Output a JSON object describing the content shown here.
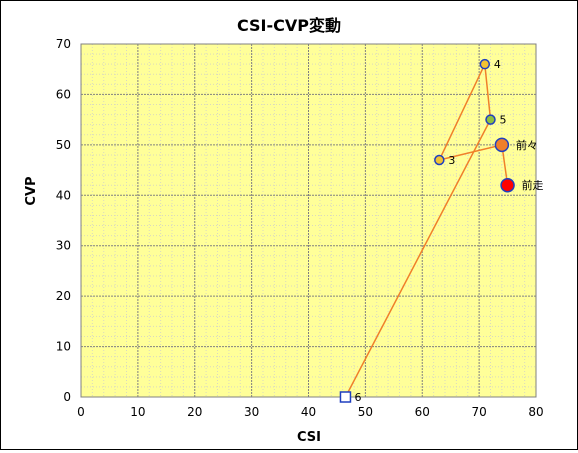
{
  "chart_data": {
    "type": "scatter",
    "title": "CSI-CVP変動",
    "xlabel": "CSI",
    "ylabel": "CVP",
    "xlim": [
      0,
      80
    ],
    "ylim": [
      0,
      70
    ],
    "x_ticks": [
      0,
      10,
      20,
      30,
      40,
      50,
      60,
      70,
      80
    ],
    "y_ticks": [
      0,
      10,
      20,
      30,
      40,
      50,
      60,
      70
    ],
    "minor_x_step": 2,
    "minor_y_step": 2,
    "grid": true,
    "path_order": [
      "6",
      "5",
      "4",
      "3",
      "前々",
      "前走"
    ],
    "points": [
      {
        "label": "6",
        "x": 46.5,
        "y": 0,
        "marker": "square",
        "fill": "#ffffff",
        "stroke": "#1f3fbf"
      },
      {
        "label": "5",
        "x": 72,
        "y": 55,
        "marker": "circle",
        "fill": "#8fbf3f",
        "stroke": "#1f3fbf"
      },
      {
        "label": "4",
        "x": 71,
        "y": 66,
        "marker": "circle",
        "fill": "#f2c233",
        "stroke": "#1f3fbf"
      },
      {
        "label": "3",
        "x": 63,
        "y": 47,
        "marker": "circle",
        "fill": "#f2c233",
        "stroke": "#1f3fbf"
      },
      {
        "label": "前々",
        "x": 74,
        "y": 50,
        "marker": "circle-large",
        "fill": "#f07f2a",
        "stroke": "#1f3fbf"
      },
      {
        "label": "前走",
        "x": 75,
        "y": 42,
        "marker": "circle-large",
        "fill": "#ff0000",
        "stroke": "#1f3fbf"
      }
    ],
    "colors": {
      "plot_background": "#ffff99",
      "line": "#f07f2a",
      "major_grid": "#808080",
      "minor_grid": "#d9d9c0"
    }
  }
}
